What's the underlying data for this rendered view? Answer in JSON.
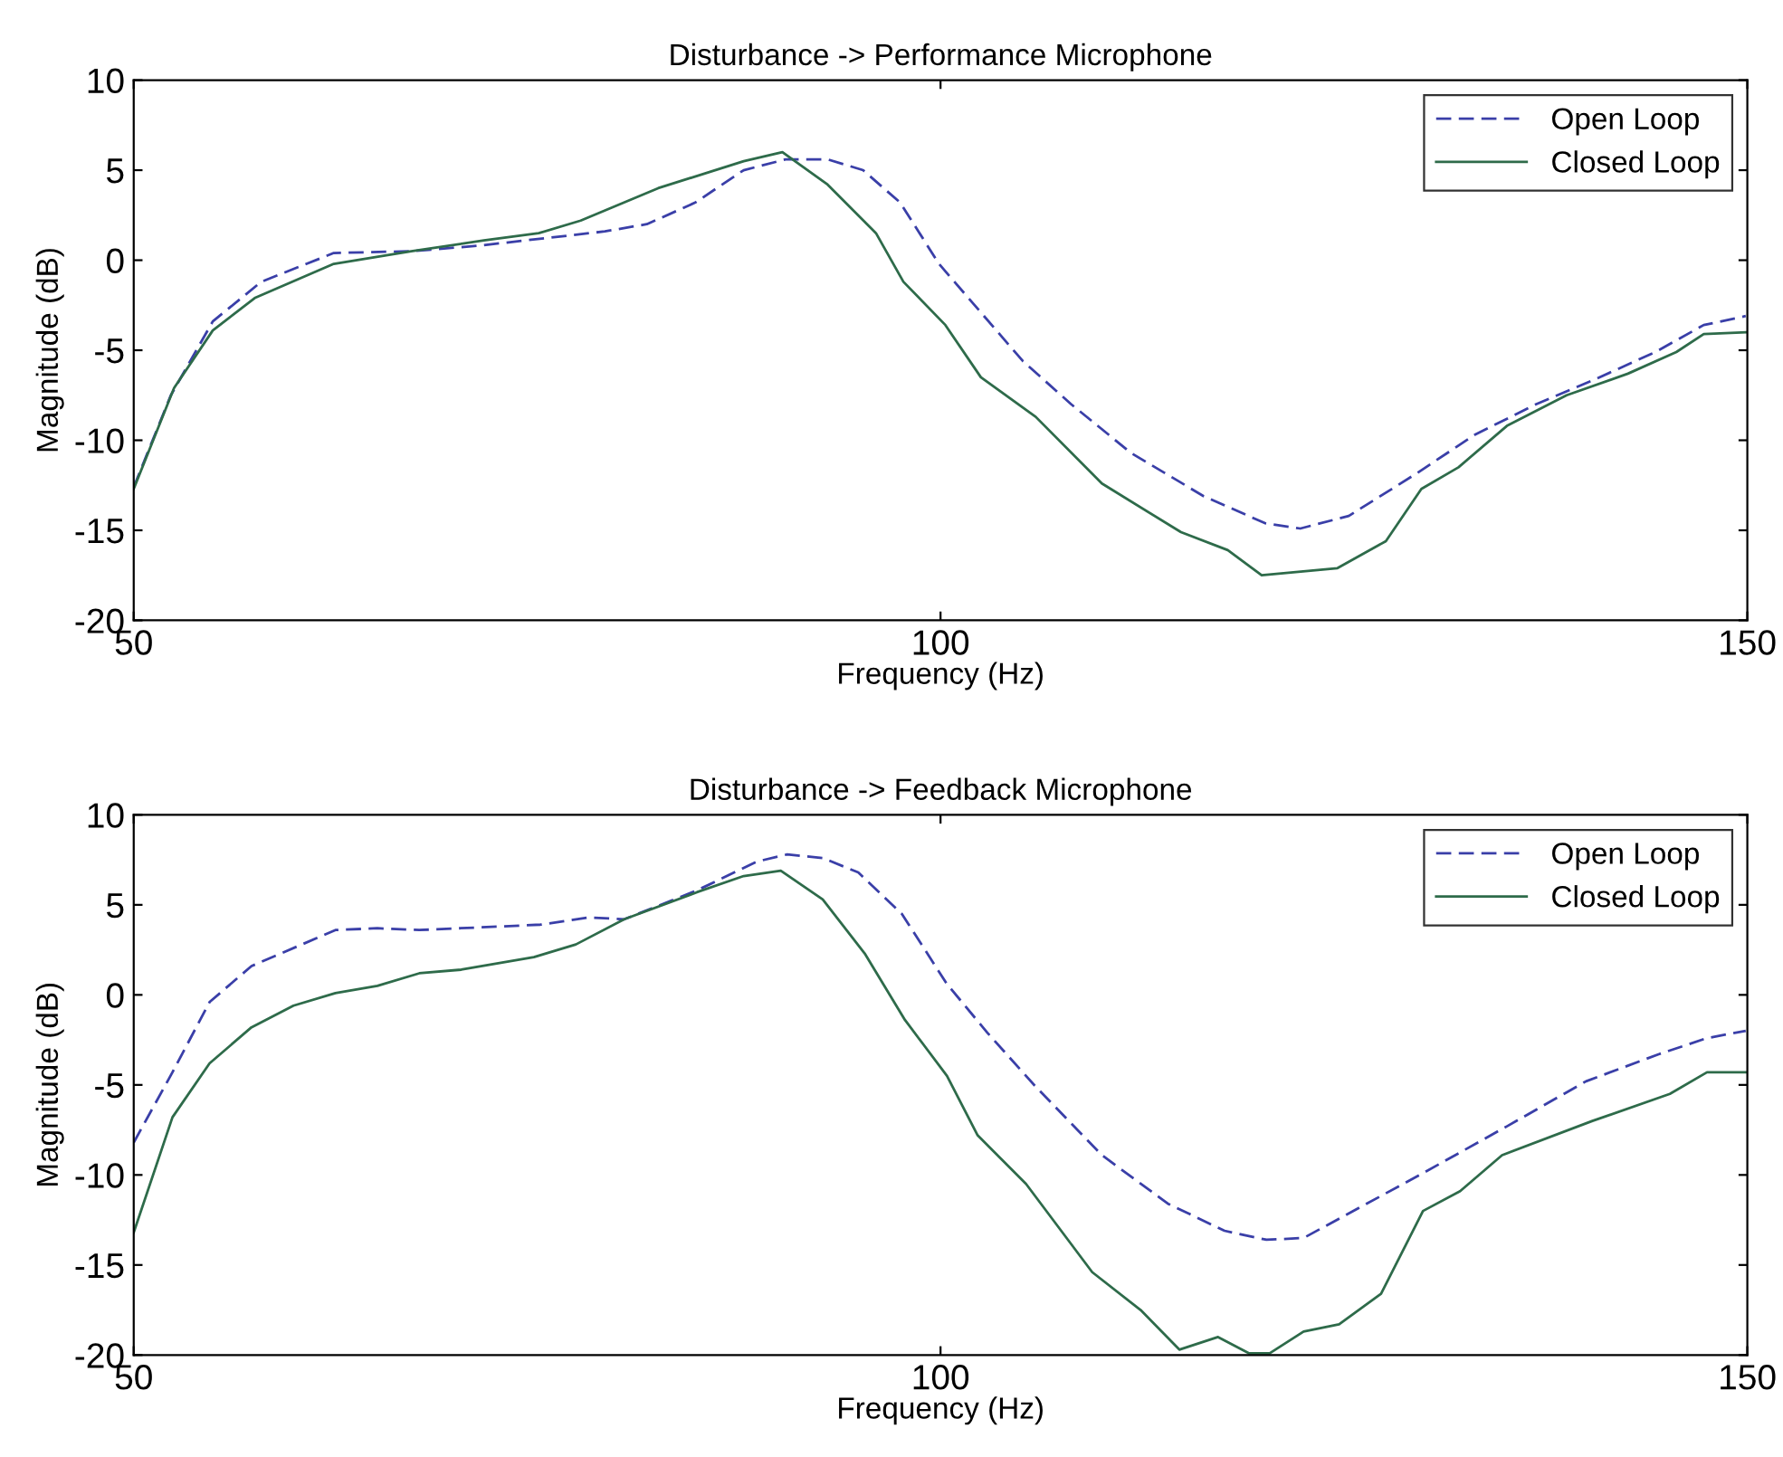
{
  "chart_data": [
    {
      "type": "line",
      "title": "Disturbance -> Performance Microphone",
      "xlabel": "Frequency (Hz)",
      "ylabel": "Magnitude (dB)",
      "xlim": [
        50,
        150
      ],
      "xticks": [
        50,
        100,
        150
      ],
      "ylim": [
        -20,
        10
      ],
      "yticks": [
        -20,
        -15,
        -10,
        -5,
        0,
        5,
        10
      ],
      "grid": false,
      "legend": "top right",
      "series": [
        {
          "name": "Open Loop",
          "color": "#3a3fa8",
          "line_style": "dashed",
          "x": [
            50,
            52.3,
            54.9,
            57.9,
            62.4,
            67.2,
            71.3,
            74.3,
            79.2,
            81.8,
            84.8,
            87.8,
            90.4,
            93,
            95.2,
            97.5,
            99.9,
            102.5,
            105.1,
            108.1,
            111.8,
            116.3,
            120.1,
            122.3,
            125.3,
            129.4,
            133.1,
            136.9,
            140.6,
            144.3,
            147.3,
            149.9
          ],
          "values": [
            -12.6,
            -7.5,
            -3.4,
            -1.2,
            0.4,
            0.5,
            0.8,
            1.1,
            1.6,
            2,
            3.2,
            5,
            5.6,
            5.6,
            5,
            3.2,
            -0.2,
            -2.9,
            -5.6,
            -8,
            -10.7,
            -13.1,
            -14.6,
            -14.9,
            -14.2,
            -11.9,
            -9.7,
            -8,
            -6.6,
            -5.1,
            -3.6,
            -3.1
          ]
        },
        {
          "name": "Closed Loop",
          "color": "#2e6b4a",
          "line_style": "solid",
          "x": [
            50,
            52.5,
            54.9,
            57.5,
            62.4,
            67.2,
            71.7,
            75.1,
            77.7,
            82.5,
            87.8,
            90.2,
            93,
            96,
            97.7,
            100.3,
            102.5,
            105.9,
            110,
            114.9,
            117.8,
            119.9,
            124.6,
            127.6,
            129.8,
            132.1,
            135.1,
            138.8,
            142.6,
            145.6,
            147.3,
            149.9
          ],
          "values": [
            -12.7,
            -7.1,
            -3.9,
            -2.1,
            -0.2,
            0.5,
            1.1,
            1.5,
            2.2,
            4,
            5.5,
            6,
            4.2,
            1.5,
            -1.2,
            -3.6,
            -6.5,
            -8.7,
            -12.4,
            -15.1,
            -16.1,
            -17.5,
            -17.1,
            -15.6,
            -12.7,
            -11.5,
            -9.2,
            -7.5,
            -6.3,
            -5.1,
            -4.1,
            -4
          ]
        }
      ]
    },
    {
      "type": "line",
      "title": "Disturbance -> Feedback Microphone",
      "xlabel": "Frequency (Hz)",
      "ylabel": "Magnitude (dB)",
      "xlim": [
        50,
        150
      ],
      "xticks": [
        50,
        100,
        150
      ],
      "ylim": [
        -20,
        10
      ],
      "yticks": [
        -20,
        -15,
        -10,
        -5,
        0,
        5,
        10
      ],
      "grid": false,
      "legend": "top right",
      "series": [
        {
          "name": "Open Loop",
          "color": "#3a3fa8",
          "line_style": "dashed",
          "x": [
            50,
            52.4,
            54.7,
            57.3,
            62.5,
            65.1,
            67.7,
            75.2,
            78.2,
            80.4,
            84.9,
            88.6,
            90.5,
            92.7,
            94.9,
            97.6,
            100.4,
            102.9,
            105.9,
            110,
            114.1,
            117.6,
            120.2,
            122.5,
            126.2,
            129.9,
            135.1,
            140,
            144.5,
            147.5,
            149.9
          ],
          "values": [
            -8.2,
            -4.3,
            -0.4,
            1.6,
            3.6,
            3.7,
            3.6,
            3.9,
            4.3,
            4.2,
            5.8,
            7.4,
            7.8,
            7.6,
            6.8,
            4.5,
            0.6,
            -2.1,
            -5.1,
            -8.9,
            -11.6,
            -13.1,
            -13.6,
            -13.5,
            -11.7,
            -9.9,
            -7.3,
            -4.8,
            -3.3,
            -2.4,
            -2
          ]
        },
        {
          "name": "Closed Loop",
          "color": "#2e6b4a",
          "line_style": "solid",
          "x": [
            50,
            52.4,
            54.7,
            57.3,
            59.9,
            62.5,
            65.1,
            67.7,
            70.3,
            74.8,
            77.4,
            80.4,
            84.9,
            87.8,
            90.1,
            92.7,
            95.3,
            97.8,
            100.4,
            102.3,
            105.3,
            109.4,
            112.4,
            114.8,
            117.2,
            119.1,
            120.4,
            122.5,
            124.7,
            127.3,
            129.9,
            132.2,
            134.8,
            140.4,
            145.2,
            147.5,
            149.9
          ],
          "values": [
            -13.2,
            -6.8,
            -3.8,
            -1.8,
            -0.6,
            0.1,
            0.5,
            1.2,
            1.4,
            2.1,
            2.8,
            4.2,
            5.7,
            6.6,
            6.9,
            5.3,
            2.3,
            -1.4,
            -4.5,
            -7.8,
            -10.5,
            -15.4,
            -17.5,
            -19.7,
            -19,
            -19.9,
            -19.9,
            -18.7,
            -18.3,
            -16.6,
            -12,
            -10.9,
            -8.9,
            -7,
            -5.5,
            -4.3,
            -4.3
          ]
        }
      ]
    }
  ]
}
